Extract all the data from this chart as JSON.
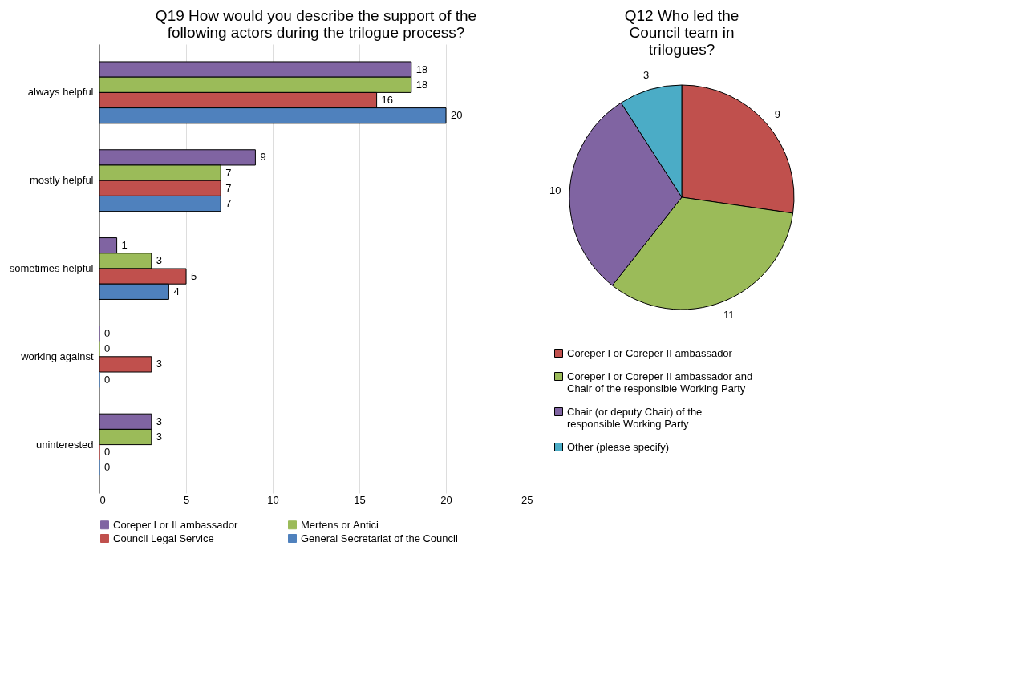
{
  "chart_data": [
    {
      "type": "bar",
      "orientation": "horizontal",
      "title": "Q19 How would you describe the support of the following actors during the trilogue process?",
      "categories": [
        "always helpful",
        "mostly helpful",
        "sometimes helpful",
        "working against",
        "uninterested"
      ],
      "series": [
        {
          "name": "Coreper I or II ambassador",
          "color": "#8064a2",
          "values": [
            18,
            9,
            1,
            0,
            3
          ]
        },
        {
          "name": "Mertens or Antici",
          "color": "#9bbb59",
          "values": [
            18,
            7,
            3,
            0,
            3
          ]
        },
        {
          "name": "Council Legal Service",
          "color": "#c0504d",
          "values": [
            16,
            7,
            5,
            3,
            0
          ]
        },
        {
          "name": "General Secretariat of the Council",
          "color": "#4f81bd",
          "values": [
            20,
            7,
            4,
            0,
            0
          ]
        }
      ],
      "xlim": [
        0,
        25
      ],
      "xticks": [
        0,
        5,
        10,
        15,
        20,
        25
      ],
      "grid": "x",
      "legend": "bottom",
      "data_labels": true
    },
    {
      "type": "pie",
      "title": "Q12 Who led the Council team in trilogues?",
      "categories": [
        "Coreper I or Coreper II ambassador",
        "Coreper I or Coreper II ambassador and Chair of the responsible Working Party",
        "Chair (or deputy Chair) of the responsible Working Party",
        "Other (please specify)"
      ],
      "values": [
        9,
        11,
        10,
        3
      ],
      "colors": [
        "#c0504d",
        "#9bbb59",
        "#8064a2",
        "#4bacc6"
      ],
      "legend": "bottom",
      "data_labels": true
    }
  ]
}
